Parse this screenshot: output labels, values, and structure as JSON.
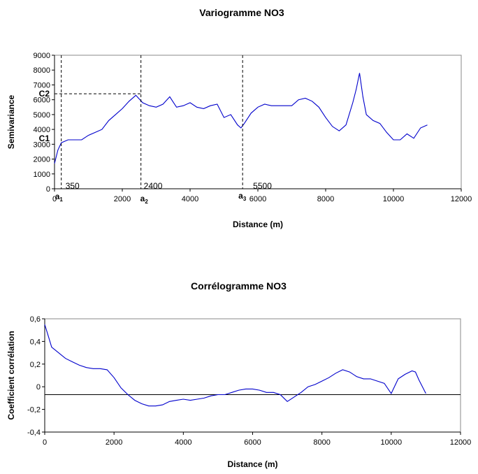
{
  "chart_data": [
    {
      "type": "line",
      "title": "Variogramme  NO3",
      "xlabel": "Distance (m)",
      "ylabel": "Semivariance",
      "xlim": [
        0,
        12000
      ],
      "ylim": [
        0,
        9000
      ],
      "x_ticks": [
        "0",
        "2000",
        "4000",
        "6000",
        "8000",
        "10000",
        "12000"
      ],
      "y_ticks": [
        "0",
        "1000",
        "2000",
        "3000",
        "4000",
        "5000",
        "6000",
        "7000",
        "8000",
        "9000"
      ],
      "grid": false,
      "series": [
        {
          "color": "#0000cc",
          "x": [
            0,
            100,
            200,
            300,
            400,
            600,
            800,
            1000,
            1200,
            1400,
            1600,
            1800,
            2000,
            2200,
            2400,
            2600,
            2800,
            3000,
            3200,
            3400,
            3600,
            3800,
            4000,
            4200,
            4400,
            4600,
            4800,
            5000,
            5200,
            5400,
            5500,
            5600,
            5800,
            6000,
            6200,
            6400,
            6600,
            6800,
            7000,
            7200,
            7400,
            7600,
            7800,
            8000,
            8200,
            8400,
            8600,
            8800,
            8900,
            9000,
            9100,
            9200,
            9400,
            9600,
            9800,
            10000,
            10200,
            10400,
            10600,
            10800,
            11000
          ],
          "y": [
            1700,
            2600,
            3100,
            3200,
            3300,
            3300,
            3300,
            3600,
            3800,
            4000,
            4600,
            5000,
            5400,
            5900,
            6300,
            5800,
            5600,
            5500,
            5700,
            6200,
            5500,
            5600,
            5800,
            5500,
            5400,
            5600,
            5700,
            4800,
            5000,
            4300,
            4100,
            4400,
            5100,
            5500,
            5700,
            5600,
            5600,
            5600,
            5600,
            6000,
            6100,
            5900,
            5500,
            4800,
            4200,
            3900,
            4300,
            5800,
            6700,
            7800,
            6200,
            5000,
            4600,
            4400,
            3800,
            3300,
            3300,
            3700,
            3400,
            4100,
            4300
          ]
        }
      ],
      "annotations": {
        "a1": {
          "label": "a",
          "subscript": "1",
          "value": "350"
        },
        "a2": {
          "label": "a",
          "subscript": "2",
          "value": "2400"
        },
        "a3": {
          "label": "a",
          "subscript": "3",
          "value": "5500"
        },
        "C1": "C1",
        "C2": "C2"
      }
    },
    {
      "type": "line",
      "title": "Corrélogramme NO3",
      "xlabel": "Distance (m)",
      "ylabel": "Coefficient corrélation",
      "xlim": [
        0,
        12000
      ],
      "ylim": [
        -0.4,
        0.6
      ],
      "x_ticks": [
        "0",
        "2000",
        "4000",
        "6000",
        "8000",
        "10000",
        "12000"
      ],
      "y_ticks": [
        "-0,4",
        "-0,2",
        "0",
        "0,2",
        "0,4",
        "0,6"
      ],
      "grid": false,
      "reference_line_y": -0.07,
      "series": [
        {
          "color": "#0000cc",
          "x": [
            0,
            100,
            200,
            400,
            600,
            800,
            1000,
            1200,
            1400,
            1600,
            1800,
            2000,
            2200,
            2400,
            2600,
            2800,
            3000,
            3200,
            3400,
            3600,
            3800,
            4000,
            4200,
            4400,
            4600,
            4800,
            5000,
            5200,
            5400,
            5600,
            5800,
            6000,
            6200,
            6400,
            6600,
            6800,
            7000,
            7200,
            7400,
            7600,
            7800,
            8000,
            8200,
            8400,
            8600,
            8800,
            9000,
            9200,
            9400,
            9600,
            9800,
            10000,
            10200,
            10400,
            10600,
            10700,
            10800,
            11000
          ],
          "y": [
            0.55,
            0.45,
            0.35,
            0.3,
            0.25,
            0.22,
            0.19,
            0.17,
            0.16,
            0.16,
            0.15,
            0.08,
            -0.01,
            -0.07,
            -0.12,
            -0.15,
            -0.17,
            -0.17,
            -0.16,
            -0.13,
            -0.12,
            -0.11,
            -0.12,
            -0.11,
            -0.1,
            -0.08,
            -0.07,
            -0.07,
            -0.05,
            -0.03,
            -0.02,
            -0.02,
            -0.03,
            -0.05,
            -0.05,
            -0.07,
            -0.13,
            -0.09,
            -0.05,
            0.0,
            0.02,
            0.05,
            0.08,
            0.12,
            0.15,
            0.13,
            0.09,
            0.07,
            0.07,
            0.05,
            0.03,
            -0.06,
            0.07,
            0.11,
            0.14,
            0.13,
            0.06,
            -0.06
          ]
        }
      ]
    }
  ]
}
